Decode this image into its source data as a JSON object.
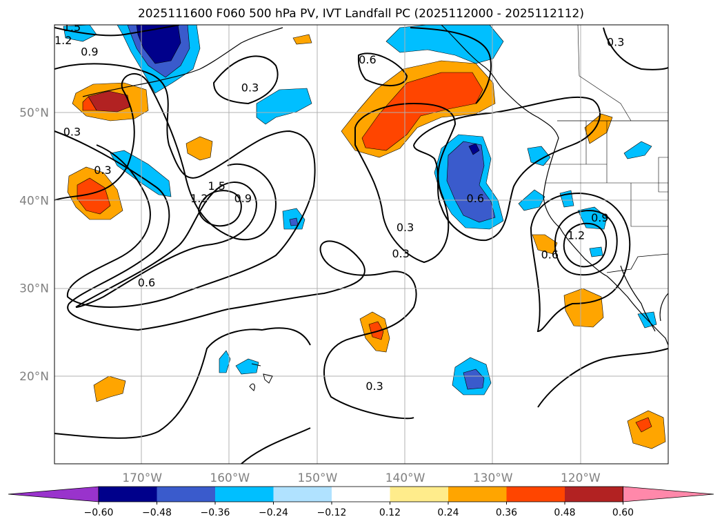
{
  "title": "2025111600 F060 500 hPa PV, IVT Landfall PC (2025112000 - 2025112112)",
  "map": {
    "lon_range": [
      -180,
      -110
    ],
    "lat_range": [
      10,
      60
    ],
    "lon_ticks": [
      {
        "value": -170,
        "label": "170°W"
      },
      {
        "value": -160,
        "label": "160°W"
      },
      {
        "value": -150,
        "label": "150°W"
      },
      {
        "value": -140,
        "label": "140°W"
      },
      {
        "value": -130,
        "label": "130°W"
      },
      {
        "value": -120,
        "label": "120°W"
      }
    ],
    "lat_ticks": [
      {
        "value": 20,
        "label": "20°N"
      },
      {
        "value": 30,
        "label": "30°N"
      },
      {
        "value": 40,
        "label": "40°N"
      },
      {
        "value": 50,
        "label": "50°N"
      }
    ],
    "gridlines": true
  },
  "contour_labels": [
    {
      "text": "1.5",
      "lon": -178,
      "lat": 59.3
    },
    {
      "text": "1.2",
      "lon": -179,
      "lat": 57.8
    },
    {
      "text": "0.9",
      "lon": -176,
      "lat": 56.5
    },
    {
      "text": "0.3",
      "lon": -157.7,
      "lat": 52.4
    },
    {
      "text": "0.6",
      "lon": -144.3,
      "lat": 55.6
    },
    {
      "text": "0.3",
      "lon": -116,
      "lat": 57.6
    },
    {
      "text": "0.3",
      "lon": -178,
      "lat": 47.4
    },
    {
      "text": "0.3",
      "lon": -174.5,
      "lat": 43.0
    },
    {
      "text": "1.5",
      "lon": -161.5,
      "lat": 41.2
    },
    {
      "text": "1.2",
      "lon": -163.5,
      "lat": 39.8
    },
    {
      "text": "0.9",
      "lon": -158.5,
      "lat": 39.8
    },
    {
      "text": "0.6",
      "lon": -169.5,
      "lat": 30.2
    },
    {
      "text": "0.3",
      "lon": -140,
      "lat": 36.5
    },
    {
      "text": "0.3",
      "lon": -140.5,
      "lat": 33.5
    },
    {
      "text": "0.6",
      "lon": -132,
      "lat": 39.8
    },
    {
      "text": "0.9",
      "lon": -117.8,
      "lat": 37.6
    },
    {
      "text": "1.2",
      "lon": -120.5,
      "lat": 35.6
    },
    {
      "text": "0.6",
      "lon": -123.5,
      "lat": 33.4
    },
    {
      "text": "0.3",
      "lon": -143.5,
      "lat": 18.4
    }
  ],
  "colorbar": {
    "ticks": [
      "-0.60",
      "-0.48",
      "-0.36",
      "-0.24",
      "-0.12",
      "0.12",
      "0.24",
      "0.36",
      "0.48",
      "0.60"
    ],
    "colors": [
      "#9933cc",
      "#00008b",
      "#3a5bcc",
      "#00bfff",
      "#b0e2ff",
      "#ffffff",
      "#ffec8b",
      "#ffa500",
      "#ff4500",
      "#b22222",
      "#ff88aa"
    ]
  },
  "shading_colors": {
    "orange": "#ffa500",
    "red_orange": "#ff4500",
    "dark_red": "#b22222",
    "sky_blue": "#00bfff",
    "medium_blue": "#3a5bcc",
    "navy": "#00008b"
  }
}
